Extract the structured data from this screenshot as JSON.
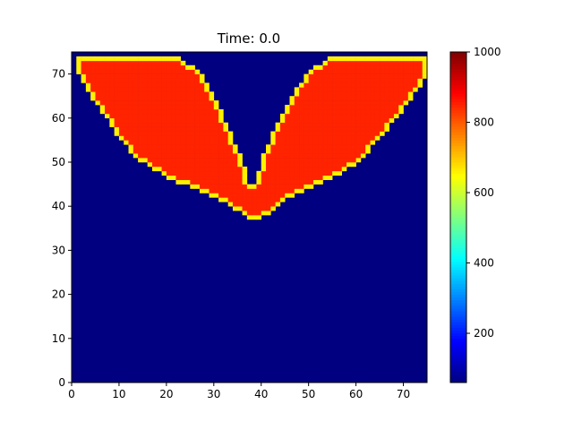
{
  "chart_data": {
    "type": "heatmap",
    "title": "Time: 0.0",
    "xlabel": "",
    "ylabel": "",
    "xlim": [
      0,
      75
    ],
    "ylim": [
      0,
      75
    ],
    "grid_size": 75,
    "x_ticks": [
      "0",
      "10",
      "20",
      "30",
      "40",
      "50",
      "60",
      "70"
    ],
    "y_ticks": [
      "0",
      "10",
      "20",
      "30",
      "40",
      "50",
      "60",
      "70"
    ],
    "colormap": "jet",
    "colorbar": {
      "vmin": 60,
      "vmax": 1000,
      "ticks": [
        "200",
        "400",
        "600",
        "800",
        "1000"
      ]
    },
    "field": {
      "background_value": 60,
      "interior_value": 850,
      "edge_value": 660,
      "top_row": 73,
      "description_rows": [
        {
          "y": 73,
          "left_x": [
            1,
            22
          ],
          "right_x": [
            54,
            74
          ]
        },
        {
          "y": 70,
          "left_x": [
            1,
            26
          ],
          "right_x": [
            50,
            74
          ]
        },
        {
          "y": 66,
          "left_x": [
            3,
            28
          ],
          "right_x": [
            47,
            72
          ]
        },
        {
          "y": 60,
          "left_x": [
            7,
            31
          ],
          "right_x": [
            44,
            68
          ]
        },
        {
          "y": 55,
          "left_x": [
            10,
            33
          ],
          "right_x": [
            42,
            64
          ]
        },
        {
          "y": 50,
          "left_x": [
            14,
            35
          ],
          "right_x": [
            40,
            60
          ]
        },
        {
          "y": 46,
          "left_x": [
            20,
            36
          ],
          "right_x": [
            39,
            54
          ]
        },
        {
          "y": 43,
          "left_x": [
            27,
            37
          ],
          "right_x": [
            38,
            48
          ]
        },
        {
          "y": 41,
          "left_x": [
            31,
            44
          ],
          "right_x": [
            31,
            44
          ]
        },
        {
          "y": 39,
          "left_x": [
            34,
            42
          ],
          "right_x": [
            34,
            42
          ]
        },
        {
          "y": 37,
          "left_x": [
            37,
            39
          ],
          "right_x": [
            37,
            39
          ]
        }
      ]
    }
  }
}
